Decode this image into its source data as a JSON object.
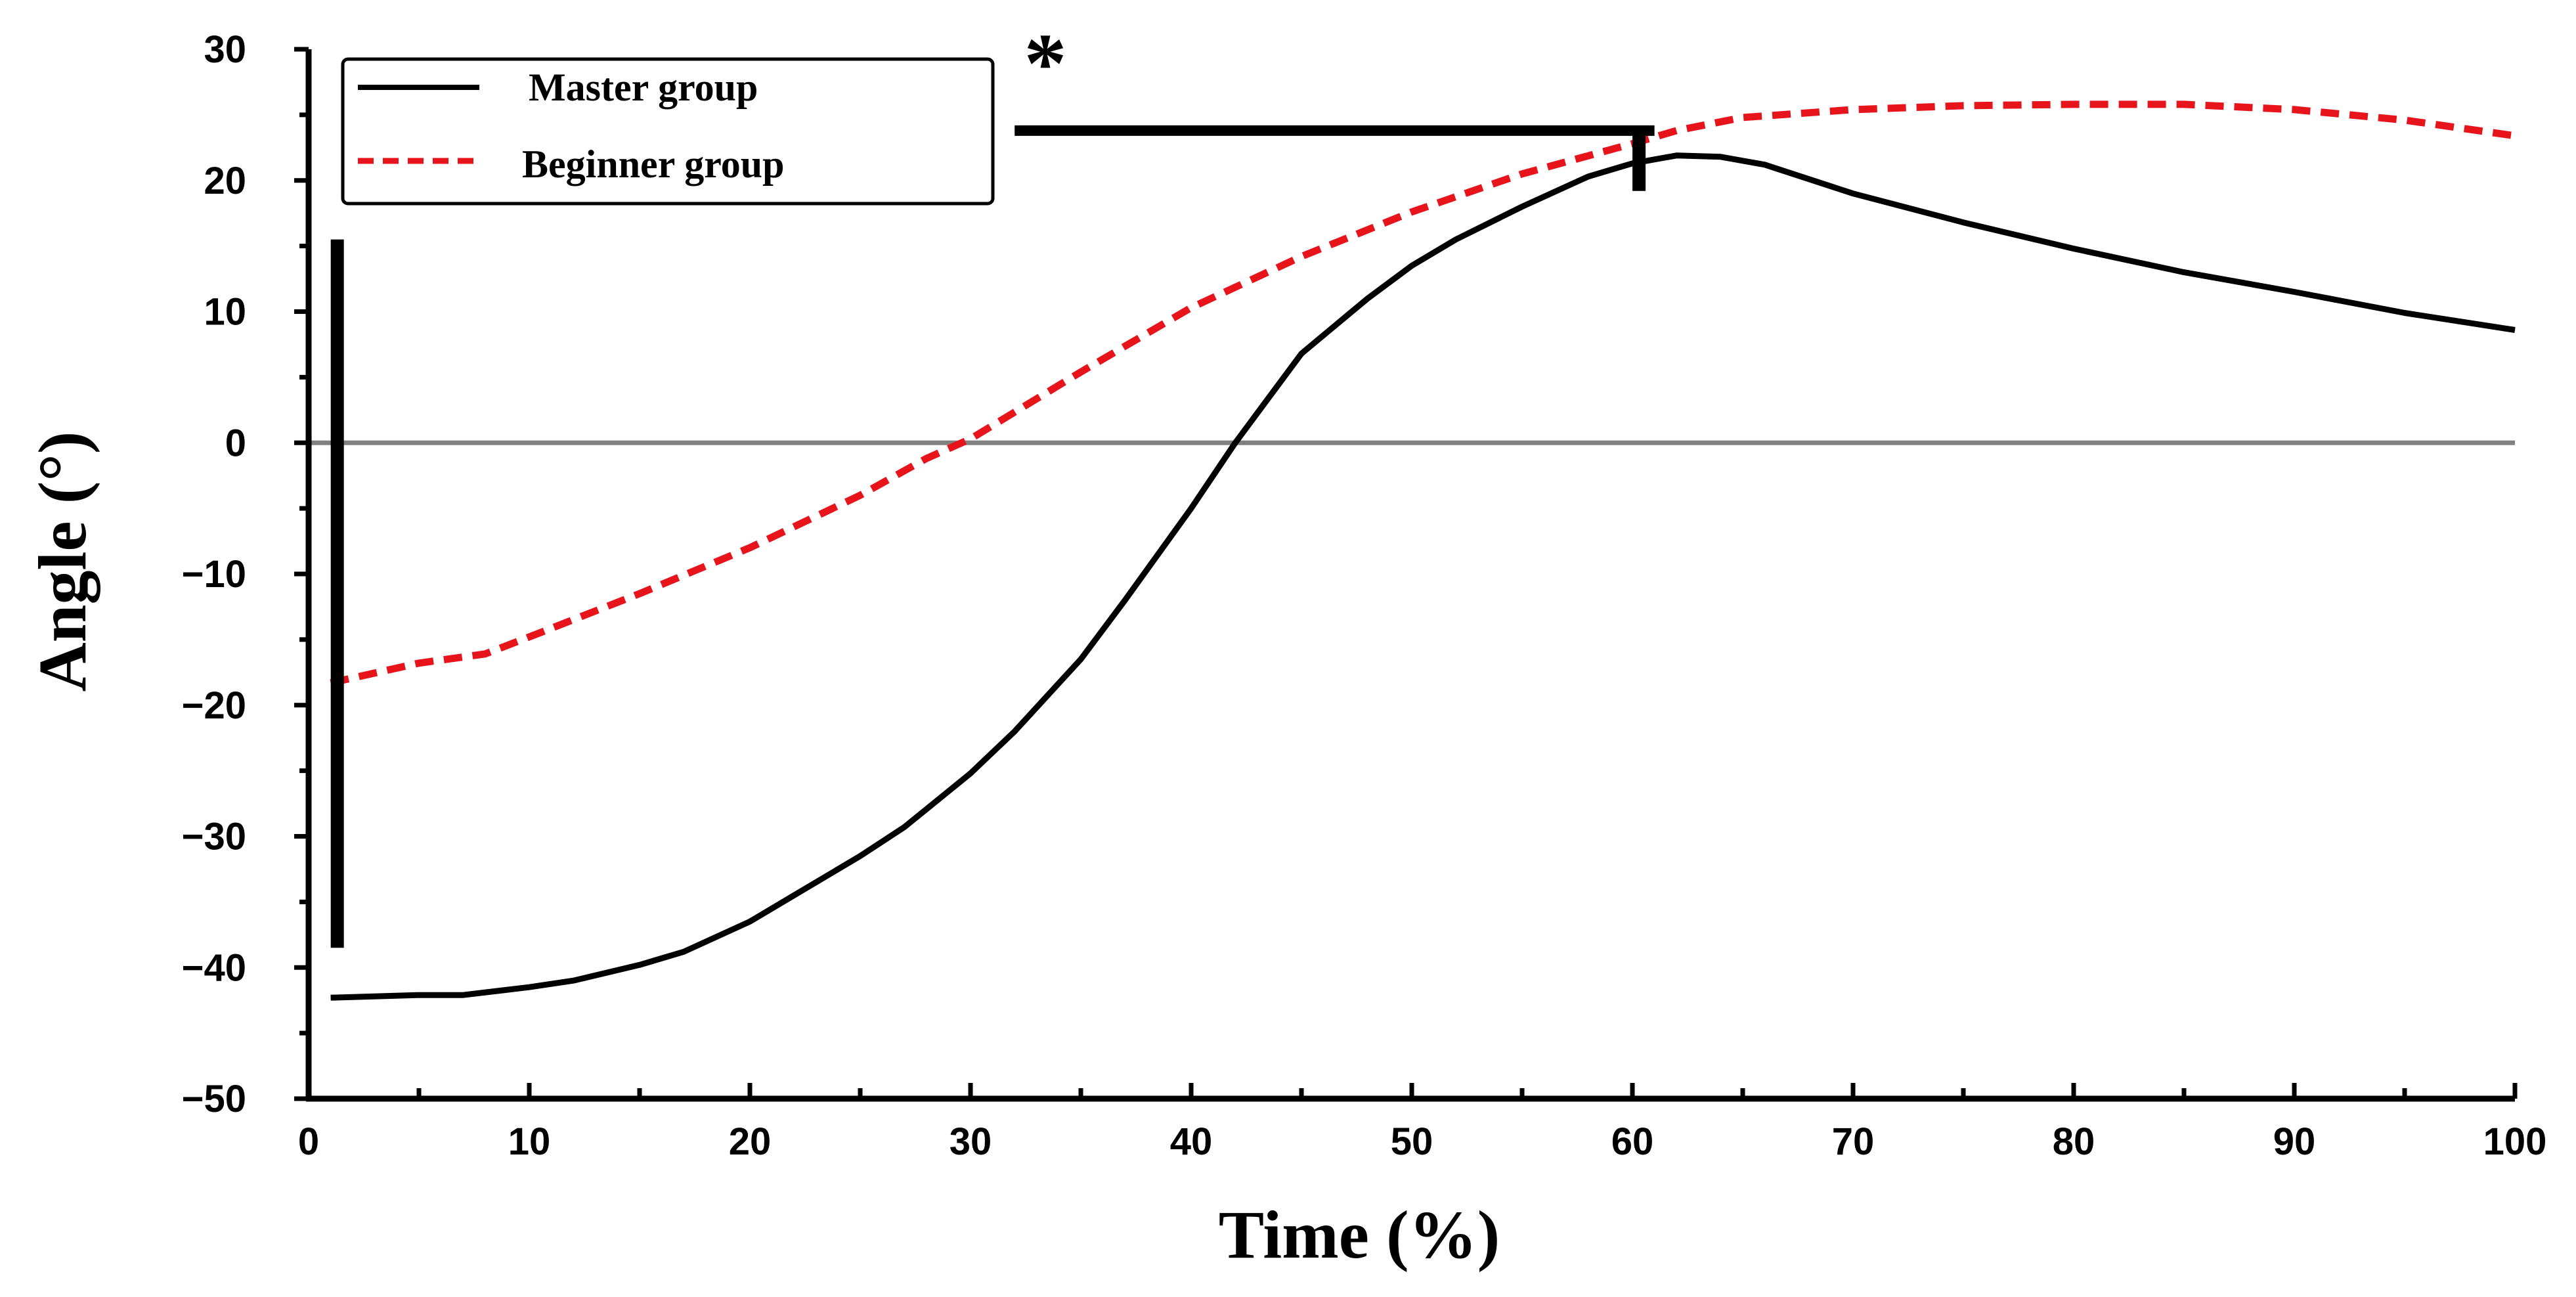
{
  "chart_data": {
    "type": "line",
    "title": "",
    "xlabel": "Time (%)",
    "ylabel": "Angle (°)",
    "xlim": [
      0,
      100
    ],
    "ylim": [
      -50,
      30
    ],
    "x_ticks": [
      0,
      10,
      20,
      30,
      40,
      50,
      60,
      70,
      80,
      90,
      100
    ],
    "y_ticks": [
      30,
      20,
      10,
      0,
      -10,
      -20,
      -30,
      -40,
      -50
    ],
    "x_tick_labels": [
      "0",
      "10",
      "20",
      "30",
      "40",
      "50",
      "60",
      "70",
      "80",
      "90",
      "100"
    ],
    "y_tick_labels": [
      "30",
      "20",
      "10",
      "0",
      "−10",
      "−20",
      "−30",
      "−40",
      "−50"
    ],
    "reference_line_y": 0,
    "legend_position": "top-left",
    "annotation": "*",
    "series": [
      {
        "name": "Master group",
        "color": "#000000",
        "style": "solid",
        "x": [
          1,
          5,
          7,
          10,
          12,
          15,
          17,
          20,
          22,
          25,
          27,
          30,
          32,
          35,
          37,
          40,
          42,
          45,
          48,
          50,
          52,
          55,
          58,
          60,
          62,
          64,
          66,
          70,
          75,
          80,
          85,
          90,
          95,
          100
        ],
        "y": [
          -42.3,
          -42.1,
          -42.1,
          -41.5,
          -41,
          -39.8,
          -38.8,
          -36.5,
          -34.5,
          -31.5,
          -29.3,
          -25.2,
          -22,
          -16.5,
          -12,
          -5,
          0,
          6.8,
          11,
          13.5,
          15.5,
          18,
          20.3,
          21.3,
          21.9,
          21.8,
          21.2,
          19,
          16.8,
          14.8,
          13,
          11.5,
          9.9,
          8.6
        ]
      },
      {
        "name": "Beginner group",
        "color": "#e8141b",
        "style": "dashed",
        "x": [
          1,
          5,
          8,
          10,
          15,
          20,
          25,
          28,
          30,
          35,
          40,
          45,
          50,
          55,
          60,
          62,
          65,
          70,
          75,
          80,
          85,
          90,
          95,
          100
        ],
        "y": [
          -18.3,
          -16.8,
          -16.1,
          -14.8,
          -11.5,
          -8,
          -4,
          -1.2,
          0.3,
          5.4,
          10.3,
          14.2,
          17.6,
          20.5,
          22.8,
          23.8,
          24.8,
          25.4,
          25.7,
          25.8,
          25.8,
          25.4,
          24.6,
          23.4
        ]
      }
    ],
    "error_bars": [
      {
        "x": 1.3,
        "y_low": -38.5,
        "y_high": 15.5
      },
      {
        "x": 60.3,
        "y_low": 19.2,
        "y_high": 23.8
      }
    ],
    "significance_bracket": {
      "x_start": 32,
      "x_end": 61,
      "y": 23.8
    }
  }
}
